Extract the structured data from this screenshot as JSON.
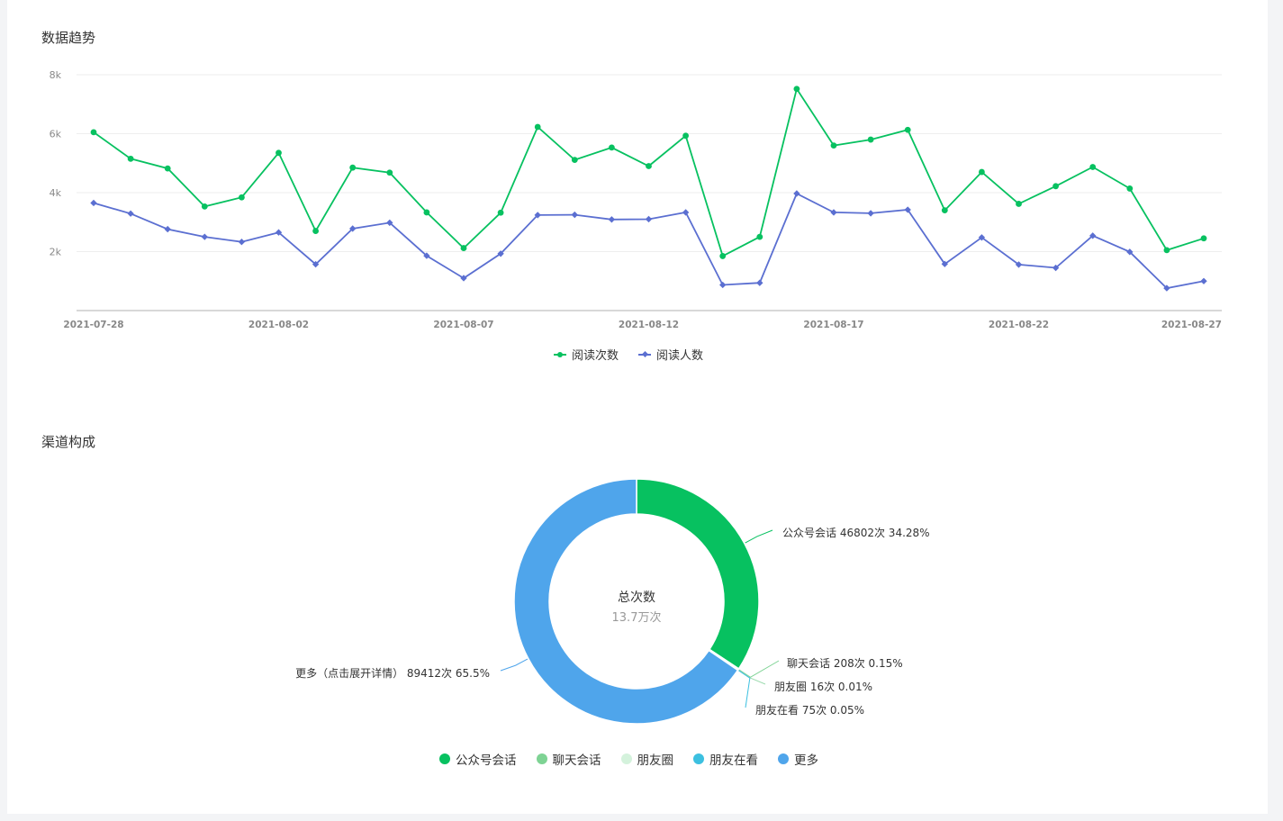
{
  "trend": {
    "title": "数据趋势"
  },
  "channel": {
    "title": "渠道构成"
  },
  "chart_data": [
    {
      "type": "line",
      "x": [
        "2021-07-28",
        "2021-07-29",
        "2021-07-30",
        "2021-07-31",
        "2021-08-01",
        "2021-08-02",
        "2021-08-03",
        "2021-08-04",
        "2021-08-05",
        "2021-08-06",
        "2021-08-07",
        "2021-08-08",
        "2021-08-09",
        "2021-08-10",
        "2021-08-11",
        "2021-08-12",
        "2021-08-13",
        "2021-08-14",
        "2021-08-15",
        "2021-08-16",
        "2021-08-17",
        "2021-08-18",
        "2021-08-19",
        "2021-08-20",
        "2021-08-21",
        "2021-08-22",
        "2021-08-23",
        "2021-08-24",
        "2021-08-25",
        "2021-08-26",
        "2021-08-27"
      ],
      "xticks": [
        "2021-07-28",
        "2021-08-02",
        "2021-08-07",
        "2021-08-12",
        "2021-08-17",
        "2021-08-22",
        "2021-08-27"
      ],
      "yticks": [
        "2k",
        "4k",
        "6k",
        "8k"
      ],
      "ylim": [
        0,
        8000
      ],
      "grid": true,
      "legend": "bottom",
      "series": [
        {
          "name": "阅读次数",
          "color": "#07c160",
          "marker": "circle",
          "values": [
            6050,
            5150,
            4820,
            3530,
            3840,
            5350,
            2700,
            4850,
            4680,
            3330,
            2120,
            3320,
            6230,
            5110,
            5530,
            4900,
            5930,
            1850,
            2500,
            7520,
            5600,
            5800,
            6130,
            3400,
            4700,
            3620,
            4220,
            4870,
            4140,
            2050,
            2450
          ]
        },
        {
          "name": "阅读人数",
          "color": "#5b6fd1",
          "marker": "diamond",
          "values": [
            3650,
            3290,
            2760,
            2500,
            2330,
            2650,
            1570,
            2780,
            2980,
            1860,
            1100,
            1930,
            3240,
            3250,
            3090,
            3100,
            3330,
            870,
            940,
            3970,
            3330,
            3300,
            3420,
            1580,
            2480,
            1560,
            1450,
            2540,
            1990,
            760,
            1000
          ]
        }
      ]
    },
    {
      "type": "pie",
      "center_title": "总次数",
      "center_value": "13.7万次",
      "legend": "bottom",
      "slices": [
        {
          "name": "公众号会话",
          "value": 46802,
          "percent": 34.28,
          "color": "#07c160",
          "label": "公众号会话 46802次 34.28%"
        },
        {
          "name": "聊天会话",
          "value": 208,
          "percent": 0.15,
          "color": "#7ed394",
          "label": "聊天会话 208次 0.15%"
        },
        {
          "name": "朋友圈",
          "value": 16,
          "percent": 0.01,
          "color": "#d4f2dc",
          "label": "朋友圈 16次 0.01%"
        },
        {
          "name": "朋友在看",
          "value": 75,
          "percent": 0.05,
          "color": "#3cc0e0",
          "label": "朋友在看 75次 0.05%"
        },
        {
          "name": "更多",
          "value": 89412,
          "percent": 65.5,
          "color": "#4fa5eb",
          "label": "更多（点击展开详情） 89412次 65.5%"
        }
      ]
    }
  ]
}
